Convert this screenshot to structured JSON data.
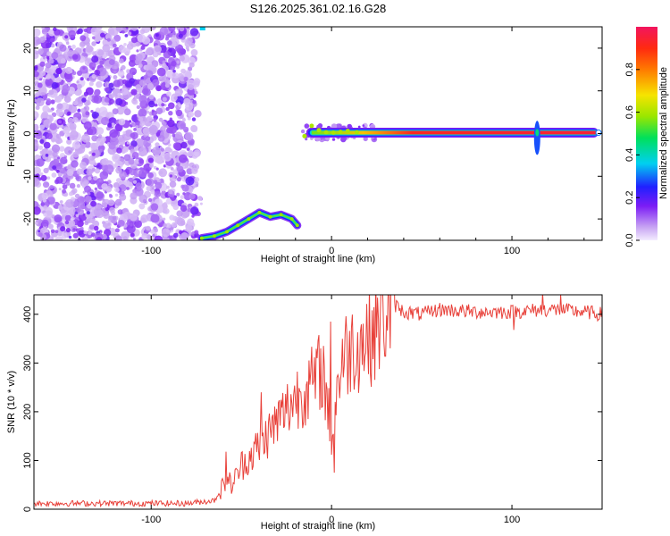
{
  "title": "S126.2025.361.02.16.G28",
  "chart_data": [
    {
      "type": "heatmap",
      "name": "spectrogram",
      "xlabel": "Height of straight line (km)",
      "ylabel": "Frequency (Hz)",
      "xlim": [
        -165,
        150
      ],
      "ylim": [
        -25,
        25
      ],
      "xticks": [
        -100,
        0,
        100
      ],
      "yticks": [
        -20,
        -10,
        0,
        10,
        20
      ],
      "colorbar": {
        "label": "Normalized spectral amplitude",
        "range": [
          0,
          1
        ],
        "ticks": [
          0.0,
          0.2,
          0.4,
          0.6,
          0.8
        ],
        "tick_labels": [
          "0.0",
          "0.2",
          "0.4",
          "0.6",
          "0.8"
        ]
      },
      "regions": [
        {
          "name": "noise",
          "x_range": [
            -165,
            -75
          ],
          "y_range": [
            -25,
            25
          ],
          "amplitude": 0.05
        },
        {
          "name": "aliased-signal",
          "x": [
            -72,
            -65,
            -58,
            -52,
            -46,
            -40,
            -34,
            -28,
            -22,
            -19
          ],
          "y": [
            -24.5,
            -24,
            -23,
            -21.5,
            -20,
            -18.5,
            -19.5,
            -19,
            -20,
            -21.5
          ],
          "amplitude": 0.3
        },
        {
          "name": "carrier",
          "x_range": [
            -16,
            148
          ],
          "y": 0.2,
          "amplitude": 0.95
        },
        {
          "name": "spike",
          "x": 114,
          "y_range": [
            -5,
            3
          ],
          "amplitude": 0.3
        }
      ]
    },
    {
      "type": "line",
      "name": "snr",
      "xlabel": "Height of straight line (km)",
      "ylabel": "SNR (10 * v/v)",
      "xlim": [
        -165,
        150
      ],
      "ylim": [
        0,
        440
      ],
      "xticks": [
        -100,
        0,
        100
      ],
      "yticks": [
        0,
        100,
        200,
        300,
        400
      ],
      "color": "#e8413a",
      "x": [
        -165,
        -80,
        -65,
        -58,
        -55,
        -50,
        -40,
        -30,
        -20,
        -10,
        -5,
        0,
        5,
        10,
        20,
        30,
        35,
        40,
        50,
        60,
        80,
        100,
        120,
        140,
        150
      ],
      "y": [
        12,
        12,
        18,
        60,
        50,
        90,
        130,
        180,
        230,
        260,
        290,
        150,
        300,
        330,
        350,
        400,
        420,
        405,
        400,
        410,
        405,
        405,
        410,
        405,
        400
      ],
      "spikes": [
        {
          "x": -58.5,
          "y": 118
        },
        {
          "x": -39,
          "y": 240
        },
        {
          "x": -8,
          "y": 310
        },
        {
          "x": -0.5,
          "y": 385
        },
        {
          "x": 1.5,
          "y": 75
        },
        {
          "x": 101,
          "y": 368
        },
        {
          "x": 117,
          "y": 445
        },
        {
          "x": 127,
          "y": 440
        }
      ]
    }
  ]
}
